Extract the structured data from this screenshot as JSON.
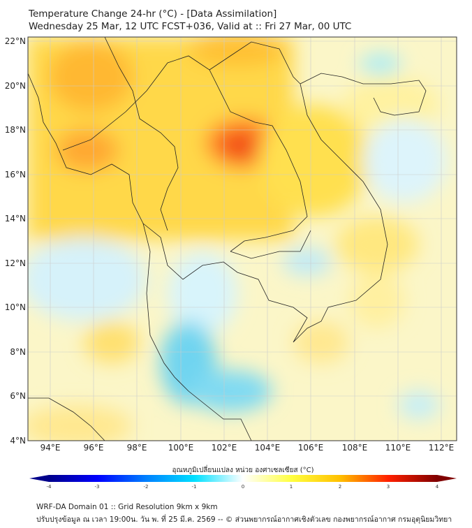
{
  "header": {
    "title": "Temperature Change 24-hr (°C) - [Data Assimilation]",
    "subtitle": "Wednesday 25 Mar, 12 UTC FCST+036, Valid at :: Fri 27 Mar, 00 UTC"
  },
  "map": {
    "lon_range": [
      93.0,
      112.7
    ],
    "lat_range": [
      4.0,
      22.2
    ],
    "lon_ticks": [
      "94°E",
      "96°E",
      "98°E",
      "100°E",
      "102°E",
      "104°E",
      "106°E",
      "108°E",
      "110°E",
      "112°E"
    ],
    "lat_ticks": [
      "22°N",
      "20°N",
      "18°N",
      "16°N",
      "14°N",
      "12°N",
      "10°N",
      "8°N",
      "6°N",
      "4°N"
    ]
  },
  "colorbar": {
    "label": "อุณหภูมิเปลี่ยนแปลง หน่วย องศาเซลเซียส (°C)",
    "ticks": [
      "-4",
      "-3",
      "-2",
      "-1",
      "0",
      "1",
      "2",
      "3",
      "4"
    ],
    "range": [
      -4,
      4
    ],
    "colors": [
      "#00008b",
      "#0000ff",
      "#0080ff",
      "#00e0ff",
      "#ffffff",
      "#ffff40",
      "#ffc000",
      "#ff2000",
      "#800000"
    ]
  },
  "footer": {
    "line1": "WRF-DA Domain 01 :: Grid Resolution 9km x 9km",
    "line2": "ปรับปรุงข้อมูล ณ เวลา 19:00น. วัน พ. ที่ 25 มี.ค. 2569 -- © ส่วนพยากรณ์อากาศเชิงตัวเลข กองพยากรณ์อากาศ กรมอุตุนิยมวิทยา"
  }
}
